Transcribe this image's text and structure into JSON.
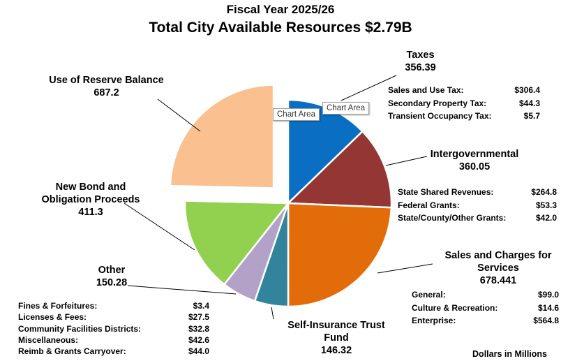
{
  "chart_data": {
    "type": "pie",
    "title": "Fiscal Year 2025/26",
    "subtitle": "Total City Available Resources $2.79B",
    "units_note": "Dollars in Millions",
    "slices": [
      {
        "label": "Taxes",
        "value": 356.39,
        "value_text": "356.39",
        "color": "#0a6fc2",
        "breakdown": [
          {
            "label": "Sales and Use Tax:",
            "value": "$306.4"
          },
          {
            "label": "Secondary Property Tax:",
            "value": "$44.3"
          },
          {
            "label": "Transient Occupancy Tax:",
            "value": "$5.7"
          }
        ]
      },
      {
        "label": "Intergovernmental",
        "value": 360.05,
        "value_text": "360.05",
        "color": "#943634",
        "breakdown": [
          {
            "label": "State Shared Revenues:",
            "value": "$264.8"
          },
          {
            "label": "Federal Grants:",
            "value": "$53.3"
          },
          {
            "label": "State/County/Other Grants:",
            "value": "$42.0"
          }
        ]
      },
      {
        "label": "Sales and Charges for Services",
        "value": 678.441,
        "value_text": "678.441",
        "color": "#e36c0a",
        "breakdown": [
          {
            "label": "General:",
            "value": "$99.0"
          },
          {
            "label": "Culture & Recreation:",
            "value": "$14.6"
          },
          {
            "label": "Enterprise:",
            "value": "$564.8"
          }
        ]
      },
      {
        "label": "Self-Insurance Trust Fund",
        "value": 146.32,
        "value_text": "146.32",
        "color": "#31849b",
        "breakdown": []
      },
      {
        "label": "Other",
        "value": 150.28,
        "value_text": "150.28",
        "color": "#b3a2c7",
        "breakdown": [
          {
            "label": "Fines & Forfeitures:",
            "value": "$3.4"
          },
          {
            "label": "Licenses & Fees:",
            "value": "$27.5"
          },
          {
            "label": "Community Facilities Districts:",
            "value": "$32.8"
          },
          {
            "label": "Miscellaneous:",
            "value": "$42.6"
          },
          {
            "label": "Reimb & Grants Carryover:",
            "value": "$44.0"
          }
        ]
      },
      {
        "label": "New Bond and Obligation Proceeds",
        "value": 411.3,
        "value_text": "411.3",
        "color": "#92d050",
        "breakdown": []
      },
      {
        "label": "Use of Reserve Balance",
        "value": 687.2,
        "value_text": "687.2",
        "color": "#fac090",
        "exploded": true,
        "breakdown": []
      }
    ]
  },
  "tooltips": {
    "first": "Chart Area",
    "second": "Chart Area"
  }
}
